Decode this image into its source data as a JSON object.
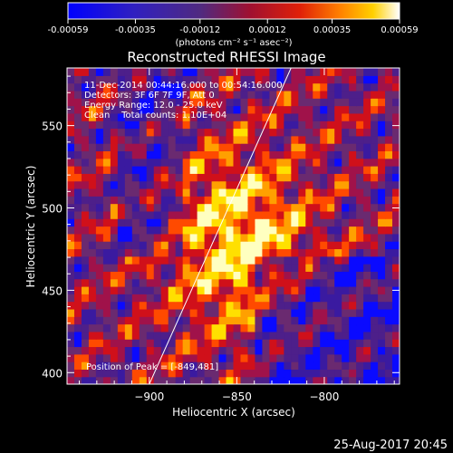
{
  "colorbar": {
    "tick_labels": [
      "-0.00059",
      "-0.00035",
      "-0.00012",
      "0.00012",
      "0.00035",
      "0.00059"
    ],
    "units": "(photons cm⁻² s⁻¹ asec⁻²)",
    "range": [
      -0.00059,
      0.00059
    ]
  },
  "chart_data": {
    "type": "heatmap",
    "title": "Reconstructed RHESSI Image",
    "xlabel": "Heliocentric X (arcsec)",
    "ylabel": "Heliocentric Y (arcsec)",
    "xlim": [
      -947,
      -757
    ],
    "ylim": [
      393,
      585
    ],
    "x_ticks": [
      -900,
      -850,
      -800
    ],
    "y_ticks": [
      400,
      450,
      500,
      550
    ],
    "x_tick_labels": [
      "−900",
      "−850",
      "−800"
    ],
    "y_tick_labels": [
      "400",
      "450",
      "500",
      "550"
    ],
    "annotations": [
      "11-Dec-2014 00:44:16.000 to 00:54:16.000",
      "Detectors: 3F 6F 7F 9F, Att 0",
      "Energy Range: 12.0 - 25.0 keV",
      "Clean    Total counts: 1.10E+04"
    ],
    "peak_label": "Position of Peak = [-849,481]",
    "peak": [
      -849,
      481
    ],
    "limb_line": [
      [
        -900,
        393
      ],
      [
        -819,
        585
      ]
    ],
    "colormap": [
      "#0a0aff",
      "#3a1aa0",
      "#4d1f8a",
      "#6a2a70",
      "#a0124a",
      "#d0101a",
      "#ff4a00",
      "#ffa000",
      "#ffe000",
      "#ffffc0"
    ]
  },
  "footer": {
    "timestamp": "25-Aug-2017 20:45"
  }
}
